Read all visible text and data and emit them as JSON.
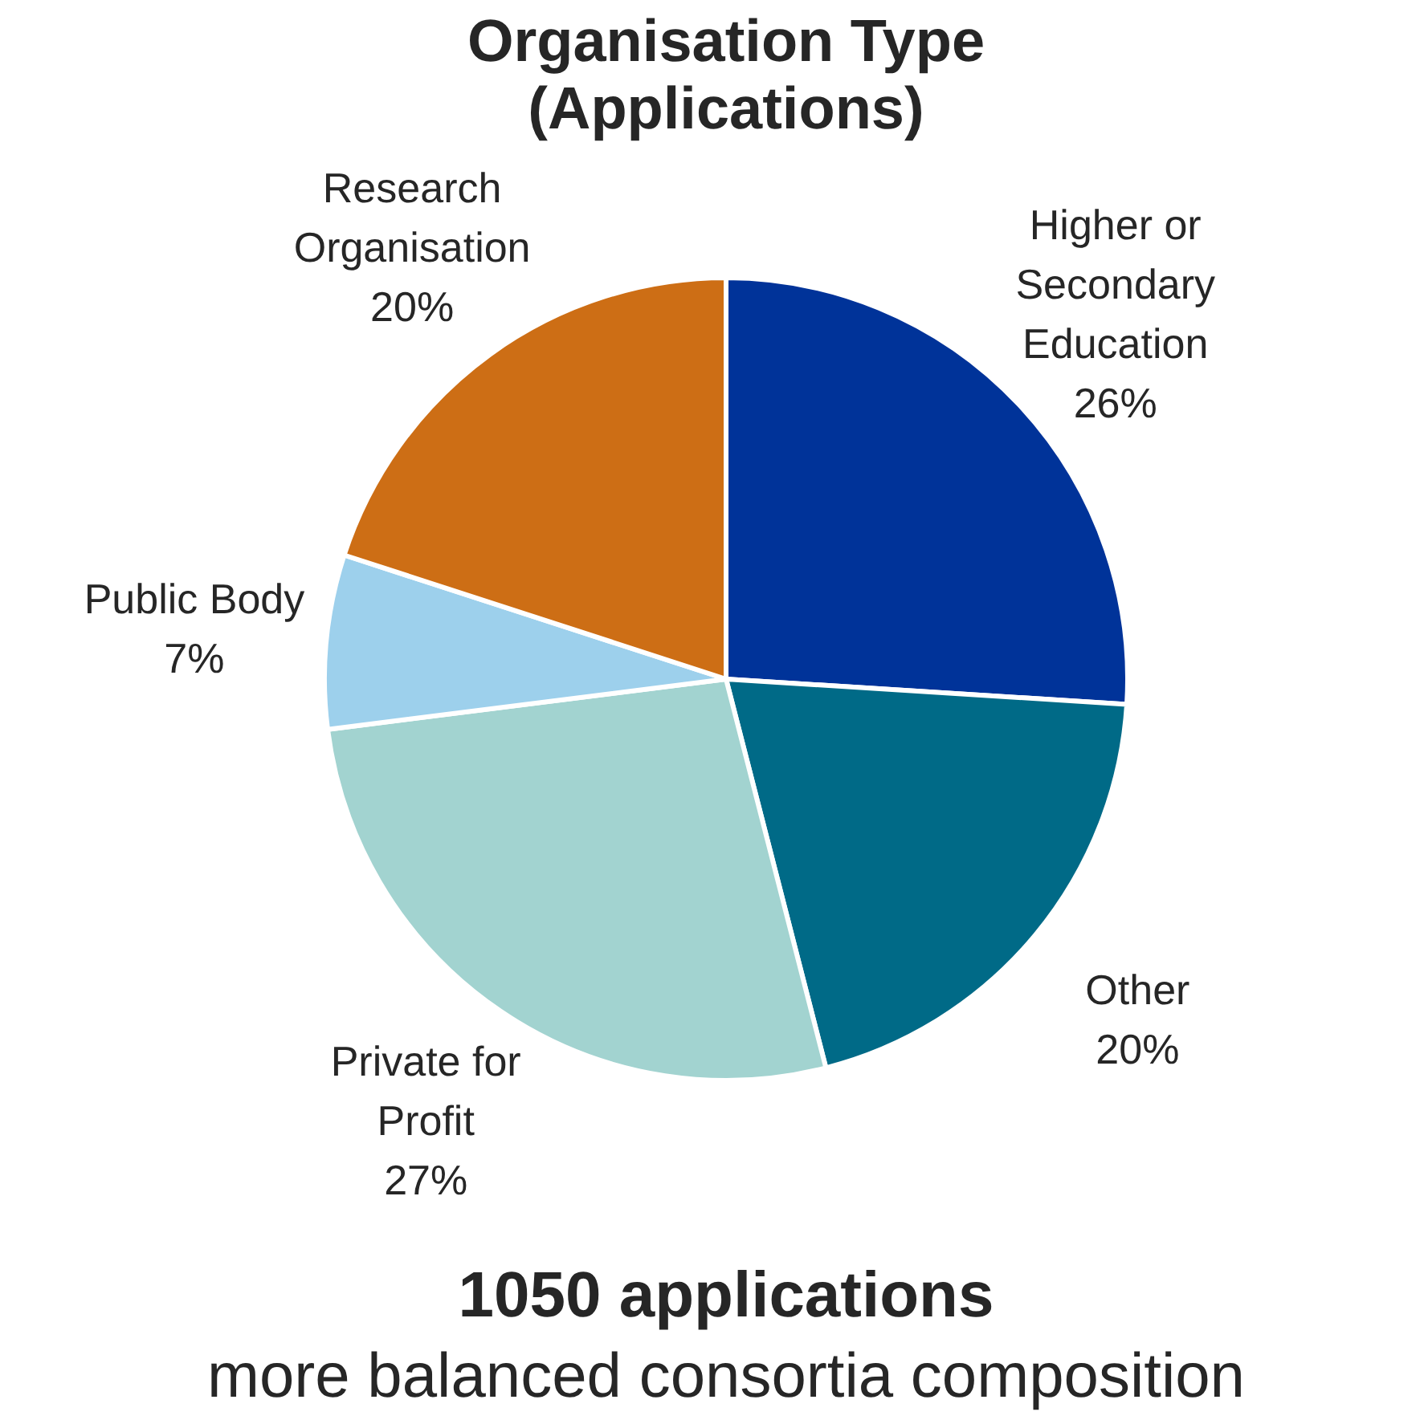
{
  "chart_data": {
    "type": "pie",
    "title": "Organisation Type (Applications)",
    "categories": [
      "Higher or Secondary Education",
      "Other",
      "Private for Profit",
      "Public Body",
      "Research Organisation"
    ],
    "values": [
      26,
      20,
      27,
      7,
      20
    ],
    "value_labels": [
      "26%",
      "20%",
      "27%",
      "7%",
      "20%"
    ],
    "colors": [
      "#003399",
      "#006a87",
      "#a2d3d0",
      "#9dd0ec",
      "#cd6e15"
    ],
    "annotations": [
      "1050 applications",
      "more balanced consortia composition"
    ]
  }
}
